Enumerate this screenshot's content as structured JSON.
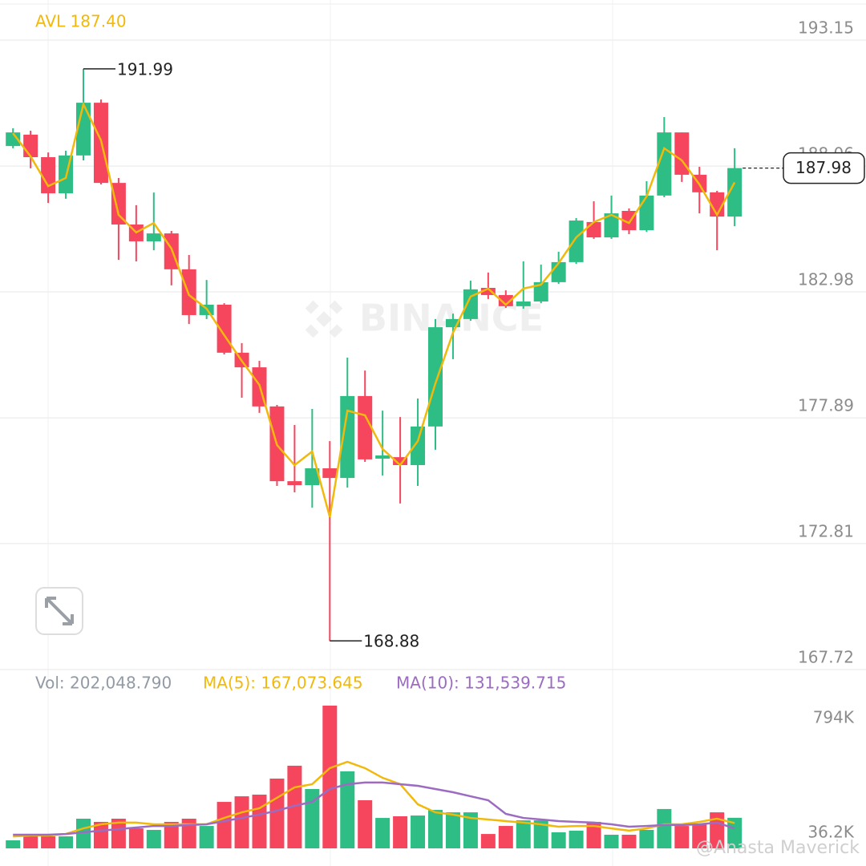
{
  "chart_data": {
    "type": "candlestick",
    "legend_text": "AVL 187.40",
    "up_color": "#2ebd85",
    "down_color": "#f6465d",
    "ylim": [
      167.72,
      194.77
    ],
    "yticks": [
      193.15,
      188.06,
      182.98,
      177.89,
      172.81,
      167.72
    ],
    "grid": true,
    "open": [
      188.87,
      189.33,
      188.42,
      186.96,
      188.49,
      190.62,
      187.38,
      185.7,
      185.02,
      185.34,
      183.89,
      182.04,
      182.46,
      180.52,
      179.93,
      178.35,
      175.33,
      175.17,
      175.85,
      175.46,
      178.77,
      176.24,
      176.3,
      175.98,
      177.54,
      181.55,
      181.88,
      183.14,
      182.85,
      182.4,
      182.59,
      183.37,
      184.18,
      185.8,
      185.18,
      186.25,
      185.47,
      186.87,
      189.42,
      187.71,
      187.0,
      186.02
    ],
    "high": [
      189.59,
      189.49,
      188.61,
      188.68,
      191.99,
      190.75,
      187.58,
      186.48,
      186.99,
      185.44,
      184.47,
      183.46,
      182.52,
      180.91,
      180.19,
      178.41,
      177.6,
      178.25,
      176.95,
      180.32,
      179.8,
      178.18,
      177.92,
      178.67,
      181.88,
      182.1,
      183.43,
      183.76,
      183.04,
      184.21,
      184.08,
      184.6,
      185.96,
      186.64,
      186.87,
      186.35,
      187.45,
      190.04,
      189.42,
      188.03,
      187.06,
      188.78
    ],
    "low": [
      188.78,
      187.97,
      186.57,
      186.74,
      188.29,
      187.32,
      184.27,
      184.21,
      184.66,
      183.24,
      181.68,
      181.88,
      180.45,
      178.7,
      178.09,
      175.14,
      174.88,
      174.26,
      168.88,
      175.07,
      176.11,
      175.56,
      174.43,
      175.14,
      176.6,
      180.26,
      181.81,
      182.69,
      182.33,
      182.3,
      182.52,
      183.3,
      184.11,
      185.12,
      185.12,
      185.31,
      185.4,
      186.8,
      187.42,
      186.15,
      184.66,
      185.63
    ],
    "close": [
      189.42,
      188.42,
      186.96,
      188.49,
      190.62,
      187.38,
      185.7,
      185.02,
      185.34,
      183.89,
      182.04,
      182.46,
      180.52,
      179.93,
      178.35,
      175.33,
      175.17,
      175.85,
      175.46,
      178.77,
      176.21,
      176.37,
      175.98,
      177.54,
      181.55,
      181.88,
      183.08,
      182.85,
      182.4,
      182.59,
      183.37,
      184.18,
      185.86,
      185.18,
      186.15,
      185.47,
      186.87,
      189.42,
      187.71,
      187.0,
      186.02,
      187.98
    ],
    "series": [
      {
        "name": "AVL",
        "color": "#f0b90b",
        "values": [
          189.39,
          188.45,
          187.25,
          187.58,
          190.56,
          189.1,
          186.09,
          185.38,
          185.76,
          184.73,
          182.85,
          182.3,
          181.23,
          180.19,
          179.22,
          176.79,
          175.98,
          176.53,
          173.88,
          178.18,
          177.99,
          176.63,
          175.98,
          176.95,
          179.28,
          181.33,
          182.79,
          183.11,
          182.46,
          183.11,
          183.27,
          184.14,
          185.18,
          185.8,
          186.09,
          185.76,
          186.83,
          188.78,
          188.29,
          187.32,
          186.09,
          187.4
        ]
      }
    ],
    "volume": {
      "legend": [
        "Vol: 202,048.790",
        "MA(5): 167,073.645",
        "MA(10): 131,539.715"
      ],
      "ylim": [
        0,
        996000
      ],
      "yticks": [
        {
          "value": 794000,
          "label": "794K"
        },
        {
          "value": 36200,
          "label": "36.2K"
        }
      ],
      "values": [
        53000,
        79500,
        79500,
        79500,
        196000,
        175000,
        196000,
        132000,
        122000,
        175000,
        196000,
        148000,
        307000,
        344000,
        355000,
        461000,
        546000,
        392000,
        943000,
        509000,
        318000,
        201000,
        212000,
        217000,
        254000,
        238000,
        238000,
        95000,
        148000,
        185000,
        185000,
        106000,
        117000,
        175000,
        90000,
        90000,
        122000,
        260000,
        148000,
        159000,
        238000,
        202048.79
      ],
      "series": [
        {
          "name": "MA(5)",
          "color": "#f0b90b",
          "values": [
            79000,
            85000,
            85000,
            95000,
            132000,
            159000,
            170000,
            170000,
            159000,
            159000,
            159000,
            159000,
            201000,
            238000,
            265000,
            334000,
            403000,
            424000,
            530000,
            572000,
            530000,
            466000,
            424000,
            291000,
            238000,
            223000,
            201000,
            191000,
            180000,
            170000,
            159000,
            143000,
            148000,
            148000,
            132000,
            117000,
            132000,
            159000,
            159000,
            175000,
            196000,
            167073.645
          ]
        },
        {
          "name": "MA(10)",
          "color": "#9c6bc2",
          "values": [
            90000,
            90000,
            90000,
            95000,
            106000,
            117000,
            127000,
            138000,
            148000,
            148000,
            154000,
            159000,
            180000,
            201000,
            223000,
            249000,
            281000,
            307000,
            392000,
            424000,
            435000,
            435000,
            424000,
            413000,
            392000,
            371000,
            344000,
            318000,
            228000,
            201000,
            191000,
            180000,
            175000,
            170000,
            159000,
            143000,
            148000,
            154000,
            154000,
            159000,
            170000,
            131539.715
          ]
        }
      ]
    },
    "watermark": "BINANCE",
    "credit": "@Anasta Maverick"
  }
}
